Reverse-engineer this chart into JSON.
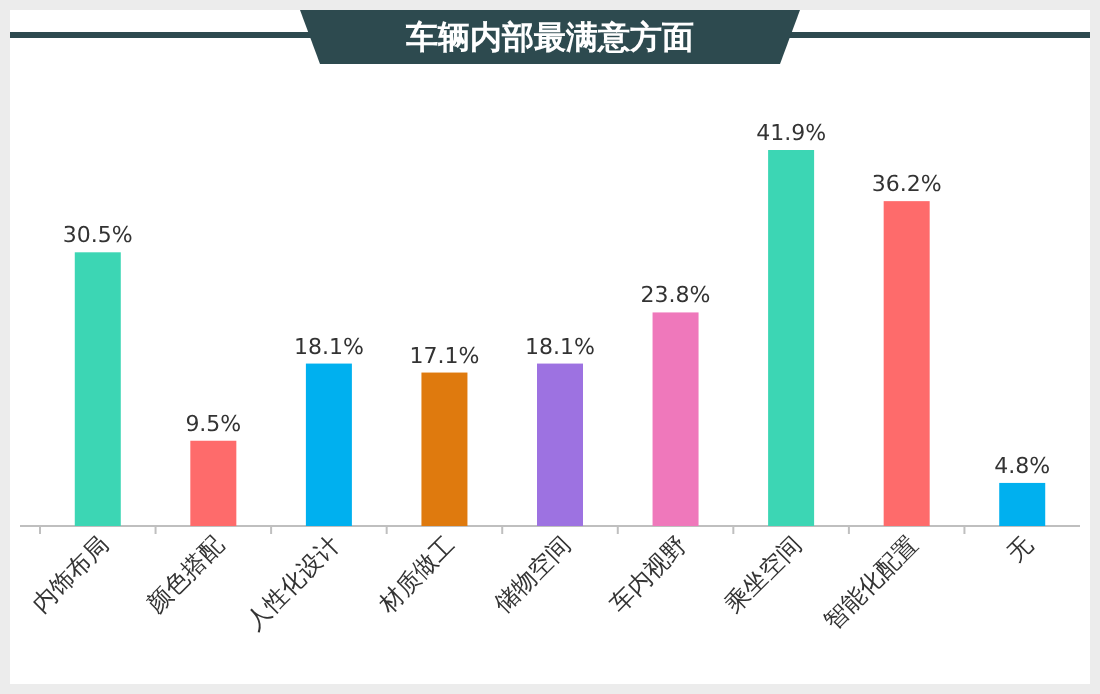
{
  "chart_data": {
    "type": "bar",
    "title": "车辆内部最满意方面",
    "categories": [
      "内饰布局",
      "颜色搭配",
      "人性化设计",
      "材质做工",
      "储物空间",
      "车内视野",
      "乘坐空间",
      "智能化配置",
      "无"
    ],
    "values": [
      30.5,
      9.5,
      18.1,
      17.1,
      18.1,
      23.8,
      41.9,
      36.2,
      4.8
    ],
    "colors": [
      "#3cd6b4",
      "#fe6b6b",
      "#00b0ef",
      "#df7a0e",
      "#9d72e1",
      "#ef78bb",
      "#3cd6b4",
      "#fe6b6b",
      "#00b0ef"
    ],
    "value_labels": [
      "30.5%",
      "9.5%",
      "18.1%",
      "17.1%",
      "18.1%",
      "23.8%",
      "41.9%",
      "36.2%",
      "4.8%"
    ]
  }
}
